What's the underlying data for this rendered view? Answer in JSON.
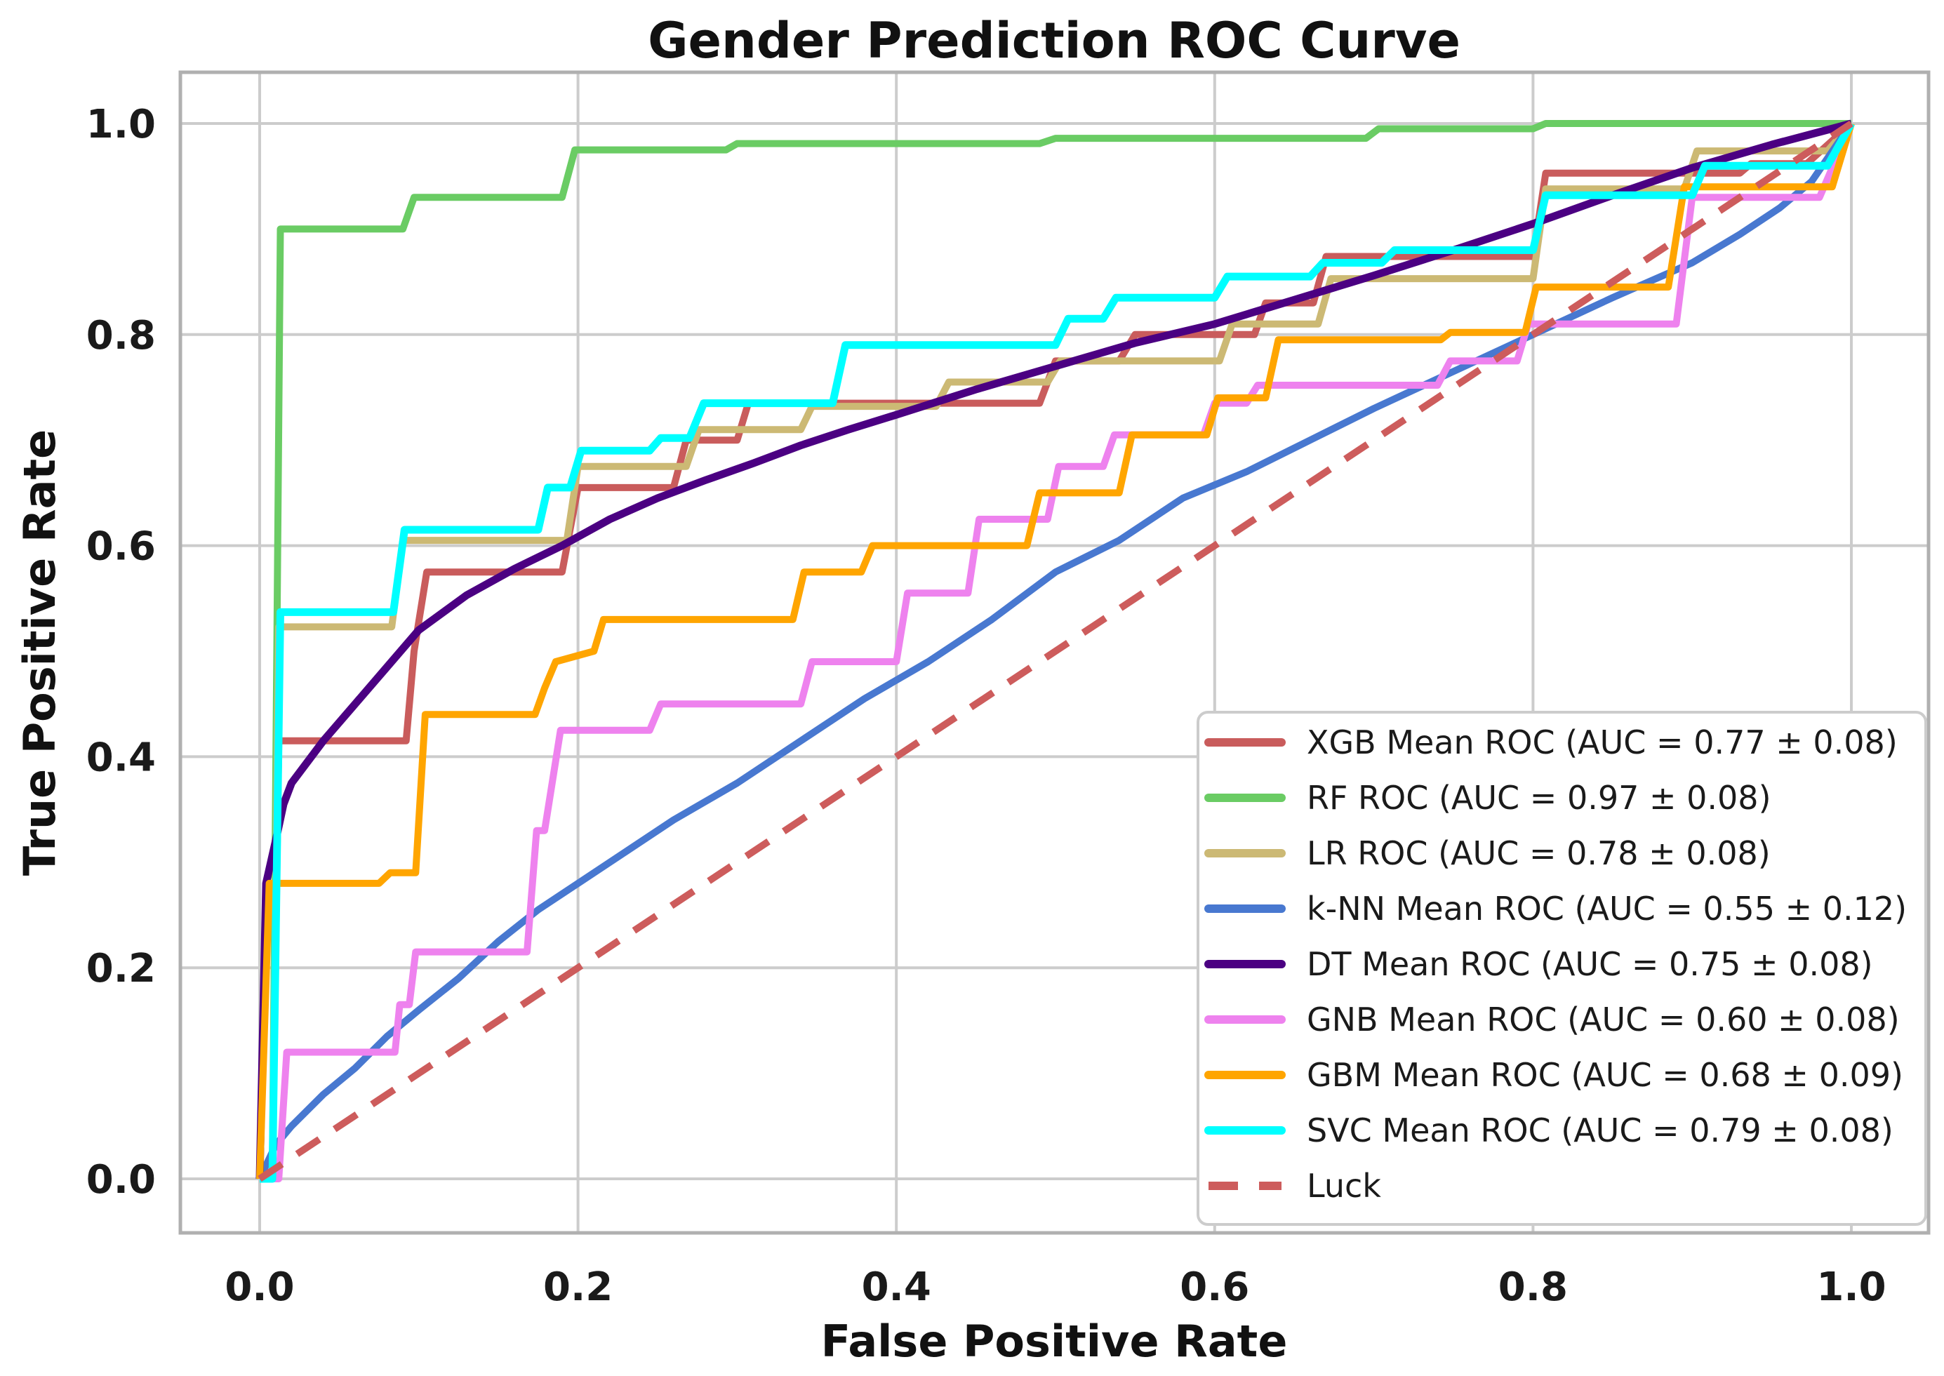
{
  "title": "Gender Prediction ROC Curve",
  "axes": {
    "xlabel": "False Positive Rate",
    "ylabel": "True Positive Rate",
    "x_tick_labels": [
      "0.0",
      "0.2",
      "0.4",
      "0.6",
      "0.8",
      "1.0"
    ],
    "y_tick_labels": [
      "0.0",
      "0.2",
      "0.4",
      "0.6",
      "0.8",
      "1.0"
    ]
  },
  "colors": {
    "background": "#ffffff",
    "grid": "#cccccc",
    "spine": "#b0b0b0",
    "text": "#1a1a1a",
    "legend_border": "#cccccc",
    "legend_background": "#ffffff"
  },
  "legend": {
    "position": "lower right",
    "entries": [
      "XGB Mean ROC (AUC = 0.77 ± 0.08)",
      "RF ROC (AUC = 0.97 ± 0.08)",
      "LR ROC (AUC = 0.78 ± 0.08)",
      "k-NN Mean ROC (AUC = 0.55 ± 0.12)",
      "DT Mean ROC (AUC = 0.75 ± 0.08)",
      "GNB Mean ROC (AUC = 0.60 ± 0.08)",
      "GBM Mean ROC (AUC = 0.68 ± 0.09)",
      "SVC Mean ROC (AUC = 0.79 ± 0.08)",
      "Luck"
    ]
  },
  "chart_data": {
    "type": "line",
    "title": "Gender Prediction ROC Curve",
    "xlabel": "False Positive Rate",
    "ylabel": "True Positive Rate",
    "xlim": [
      -0.05,
      1.05
    ],
    "ylim": [
      -0.05,
      1.05
    ],
    "x_ticks": [
      0,
      0.2,
      0.4,
      0.6,
      0.8,
      1.0
    ],
    "y_ticks": [
      0,
      0.2,
      0.4,
      0.6,
      0.8,
      1.0
    ],
    "grid": true,
    "legend_position": "lower right",
    "series": [
      {
        "name": "XGB",
        "label": "XGB Mean ROC (AUC = 0.77 ± 0.08)",
        "auc": "0.77 ± 0.08",
        "color": "#c95c5c",
        "dash": "solid",
        "width": 10,
        "points": [
          [
            0,
            0
          ],
          [
            0.008,
            0
          ],
          [
            0.012,
            0.415
          ],
          [
            0.092,
            0.415
          ],
          [
            0.097,
            0.5
          ],
          [
            0.105,
            0.575
          ],
          [
            0.19,
            0.575
          ],
          [
            0.2,
            0.655
          ],
          [
            0.26,
            0.655
          ],
          [
            0.268,
            0.7
          ],
          [
            0.3,
            0.7
          ],
          [
            0.307,
            0.735
          ],
          [
            0.49,
            0.735
          ],
          [
            0.5,
            0.775
          ],
          [
            0.54,
            0.775
          ],
          [
            0.55,
            0.8
          ],
          [
            0.625,
            0.8
          ],
          [
            0.632,
            0.83
          ],
          [
            0.662,
            0.83
          ],
          [
            0.67,
            0.874
          ],
          [
            0.8,
            0.874
          ],
          [
            0.808,
            0.953
          ],
          [
            0.93,
            0.953
          ],
          [
            0.937,
            0.962
          ],
          [
            0.972,
            0.962
          ],
          [
            1,
            1
          ]
        ]
      },
      {
        "name": "RF",
        "label": "RF ROC (AUC = 0.97 ± 0.08)",
        "auc": "0.97 ± 0.08",
        "color": "#6acc64",
        "dash": "solid",
        "width": 10,
        "points": [
          [
            0,
            0
          ],
          [
            0.008,
            0
          ],
          [
            0.013,
            0.9
          ],
          [
            0.09,
            0.9
          ],
          [
            0.097,
            0.93
          ],
          [
            0.19,
            0.93
          ],
          [
            0.198,
            0.975
          ],
          [
            0.293,
            0.975
          ],
          [
            0.3,
            0.981
          ],
          [
            0.49,
            0.981
          ],
          [
            0.5,
            0.986
          ],
          [
            0.695,
            0.986
          ],
          [
            0.703,
            0.995
          ],
          [
            0.8,
            0.995
          ],
          [
            0.808,
            1
          ],
          [
            1,
            1
          ]
        ]
      },
      {
        "name": "LR",
        "label": "LR ROC (AUC = 0.78 ± 0.08)",
        "auc": "0.78 ± 0.08",
        "color": "#ccb974",
        "dash": "solid",
        "width": 10,
        "points": [
          [
            0,
            0
          ],
          [
            0.008,
            0
          ],
          [
            0.012,
            0.523
          ],
          [
            0.083,
            0.523
          ],
          [
            0.09,
            0.605
          ],
          [
            0.193,
            0.605
          ],
          [
            0.2,
            0.675
          ],
          [
            0.268,
            0.675
          ],
          [
            0.276,
            0.71
          ],
          [
            0.34,
            0.71
          ],
          [
            0.347,
            0.732
          ],
          [
            0.425,
            0.732
          ],
          [
            0.433,
            0.755
          ],
          [
            0.495,
            0.755
          ],
          [
            0.503,
            0.775
          ],
          [
            0.603,
            0.775
          ],
          [
            0.611,
            0.81
          ],
          [
            0.665,
            0.81
          ],
          [
            0.673,
            0.853
          ],
          [
            0.8,
            0.853
          ],
          [
            0.808,
            0.938
          ],
          [
            0.895,
            0.938
          ],
          [
            0.903,
            0.974
          ],
          [
            0.985,
            0.974
          ],
          [
            1,
            1
          ]
        ]
      },
      {
        "name": "k-NN",
        "label": "k-NN Mean ROC (AUC = 0.55 ± 0.12)",
        "auc": "0.55 ± 0.12",
        "color": "#4878d0",
        "dash": "solid",
        "width": 10,
        "points": [
          [
            0,
            0
          ],
          [
            0.01,
            0.032
          ],
          [
            0.02,
            0.05
          ],
          [
            0.04,
            0.08
          ],
          [
            0.06,
            0.105
          ],
          [
            0.08,
            0.135
          ],
          [
            0.1,
            0.16
          ],
          [
            0.125,
            0.19
          ],
          [
            0.15,
            0.225
          ],
          [
            0.175,
            0.255
          ],
          [
            0.2,
            0.28
          ],
          [
            0.23,
            0.31
          ],
          [
            0.26,
            0.34
          ],
          [
            0.3,
            0.375
          ],
          [
            0.34,
            0.415
          ],
          [
            0.38,
            0.455
          ],
          [
            0.42,
            0.49
          ],
          [
            0.46,
            0.53
          ],
          [
            0.5,
            0.575
          ],
          [
            0.54,
            0.605
          ],
          [
            0.58,
            0.645
          ],
          [
            0.62,
            0.67
          ],
          [
            0.66,
            0.7
          ],
          [
            0.7,
            0.73
          ],
          [
            0.75,
            0.765
          ],
          [
            0.8,
            0.8
          ],
          [
            0.85,
            0.835
          ],
          [
            0.9,
            0.868
          ],
          [
            0.93,
            0.895
          ],
          [
            0.955,
            0.92
          ],
          [
            0.975,
            0.945
          ],
          [
            1,
            1
          ]
        ]
      },
      {
        "name": "DT",
        "label": "DT Mean ROC (AUC = 0.75 ± 0.08)",
        "auc": "0.75 ± 0.08",
        "color": "#4b0082",
        "dash": "solid",
        "width": 11,
        "points": [
          [
            0,
            0
          ],
          [
            0.004,
            0.28
          ],
          [
            0.01,
            0.32
          ],
          [
            0.015,
            0.355
          ],
          [
            0.02,
            0.375
          ],
          [
            0.04,
            0.415
          ],
          [
            0.06,
            0.45
          ],
          [
            0.08,
            0.485
          ],
          [
            0.1,
            0.52
          ],
          [
            0.13,
            0.553
          ],
          [
            0.16,
            0.578
          ],
          [
            0.19,
            0.6
          ],
          [
            0.22,
            0.625
          ],
          [
            0.25,
            0.645
          ],
          [
            0.28,
            0.662
          ],
          [
            0.31,
            0.678
          ],
          [
            0.34,
            0.695
          ],
          [
            0.37,
            0.71
          ],
          [
            0.4,
            0.724
          ],
          [
            0.45,
            0.748
          ],
          [
            0.5,
            0.77
          ],
          [
            0.55,
            0.792
          ],
          [
            0.6,
            0.81
          ],
          [
            0.65,
            0.833
          ],
          [
            0.7,
            0.856
          ],
          [
            0.75,
            0.88
          ],
          [
            0.8,
            0.905
          ],
          [
            0.85,
            0.932
          ],
          [
            0.9,
            0.958
          ],
          [
            0.95,
            0.98
          ],
          [
            1,
            1
          ]
        ]
      },
      {
        "name": "GNB",
        "label": "GNB Mean ROC (AUC = 0.60 ± 0.08)",
        "auc": "0.60 ± 0.08",
        "color": "#ee82ee",
        "dash": "solid",
        "width": 10,
        "points": [
          [
            0,
            0
          ],
          [
            0.012,
            0
          ],
          [
            0.017,
            0.12
          ],
          [
            0.085,
            0.12
          ],
          [
            0.088,
            0.165
          ],
          [
            0.094,
            0.165
          ],
          [
            0.098,
            0.215
          ],
          [
            0.168,
            0.215
          ],
          [
            0.174,
            0.33
          ],
          [
            0.179,
            0.33
          ],
          [
            0.189,
            0.425
          ],
          [
            0.245,
            0.425
          ],
          [
            0.252,
            0.45
          ],
          [
            0.34,
            0.45
          ],
          [
            0.347,
            0.49
          ],
          [
            0.4,
            0.49
          ],
          [
            0.407,
            0.555
          ],
          [
            0.445,
            0.555
          ],
          [
            0.452,
            0.625
          ],
          [
            0.495,
            0.625
          ],
          [
            0.502,
            0.675
          ],
          [
            0.53,
            0.675
          ],
          [
            0.537,
            0.705
          ],
          [
            0.593,
            0.705
          ],
          [
            0.6,
            0.735
          ],
          [
            0.62,
            0.735
          ],
          [
            0.627,
            0.752
          ],
          [
            0.74,
            0.752
          ],
          [
            0.748,
            0.775
          ],
          [
            0.79,
            0.775
          ],
          [
            0.797,
            0.81
          ],
          [
            0.89,
            0.81
          ],
          [
            0.9,
            0.93
          ],
          [
            0.98,
            0.93
          ],
          [
            1,
            1
          ]
        ]
      },
      {
        "name": "GBM",
        "label": "GBM Mean ROC (AUC = 0.68 ± 0.09)",
        "auc": "0.68 ± 0.09",
        "color": "#ffa500",
        "dash": "solid",
        "width": 10,
        "points": [
          [
            0,
            0
          ],
          [
            0.006,
            0.28
          ],
          [
            0.075,
            0.28
          ],
          [
            0.082,
            0.29
          ],
          [
            0.098,
            0.29
          ],
          [
            0.104,
            0.44
          ],
          [
            0.173,
            0.44
          ],
          [
            0.179,
            0.465
          ],
          [
            0.186,
            0.49
          ],
          [
            0.21,
            0.5
          ],
          [
            0.216,
            0.53
          ],
          [
            0.335,
            0.53
          ],
          [
            0.342,
            0.575
          ],
          [
            0.378,
            0.575
          ],
          [
            0.385,
            0.6
          ],
          [
            0.482,
            0.6
          ],
          [
            0.49,
            0.65
          ],
          [
            0.54,
            0.65
          ],
          [
            0.548,
            0.705
          ],
          [
            0.595,
            0.705
          ],
          [
            0.602,
            0.74
          ],
          [
            0.632,
            0.74
          ],
          [
            0.64,
            0.795
          ],
          [
            0.742,
            0.795
          ],
          [
            0.748,
            0.802
          ],
          [
            0.795,
            0.802
          ],
          [
            0.802,
            0.845
          ],
          [
            0.885,
            0.845
          ],
          [
            0.895,
            0.94
          ],
          [
            0.988,
            0.94
          ],
          [
            1,
            1
          ]
        ]
      },
      {
        "name": "SVC",
        "label": "SVC Mean ROC (AUC = 0.79 ± 0.08)",
        "auc": "0.79 ± 0.08",
        "color": "#00ffff",
        "dash": "solid",
        "width": 11,
        "points": [
          [
            0,
            0
          ],
          [
            0.008,
            0
          ],
          [
            0.013,
            0.537
          ],
          [
            0.084,
            0.537
          ],
          [
            0.091,
            0.615
          ],
          [
            0.175,
            0.615
          ],
          [
            0.181,
            0.655
          ],
          [
            0.195,
            0.655
          ],
          [
            0.202,
            0.69
          ],
          [
            0.245,
            0.69
          ],
          [
            0.252,
            0.702
          ],
          [
            0.27,
            0.702
          ],
          [
            0.279,
            0.735
          ],
          [
            0.36,
            0.735
          ],
          [
            0.368,
            0.79
          ],
          [
            0.5,
            0.79
          ],
          [
            0.508,
            0.815
          ],
          [
            0.53,
            0.815
          ],
          [
            0.538,
            0.835
          ],
          [
            0.6,
            0.835
          ],
          [
            0.608,
            0.855
          ],
          [
            0.66,
            0.855
          ],
          [
            0.668,
            0.868
          ],
          [
            0.705,
            0.868
          ],
          [
            0.713,
            0.88
          ],
          [
            0.8,
            0.88
          ],
          [
            0.808,
            0.932
          ],
          [
            0.9,
            0.932
          ],
          [
            0.908,
            0.96
          ],
          [
            0.985,
            0.96
          ],
          [
            1,
            1
          ]
        ]
      },
      {
        "name": "Luck",
        "label": "Luck",
        "auc": null,
        "color": "#cd5c5c",
        "dash": "dashed",
        "width": 10,
        "points": [
          [
            0,
            0
          ],
          [
            1,
            1
          ]
        ]
      }
    ]
  }
}
